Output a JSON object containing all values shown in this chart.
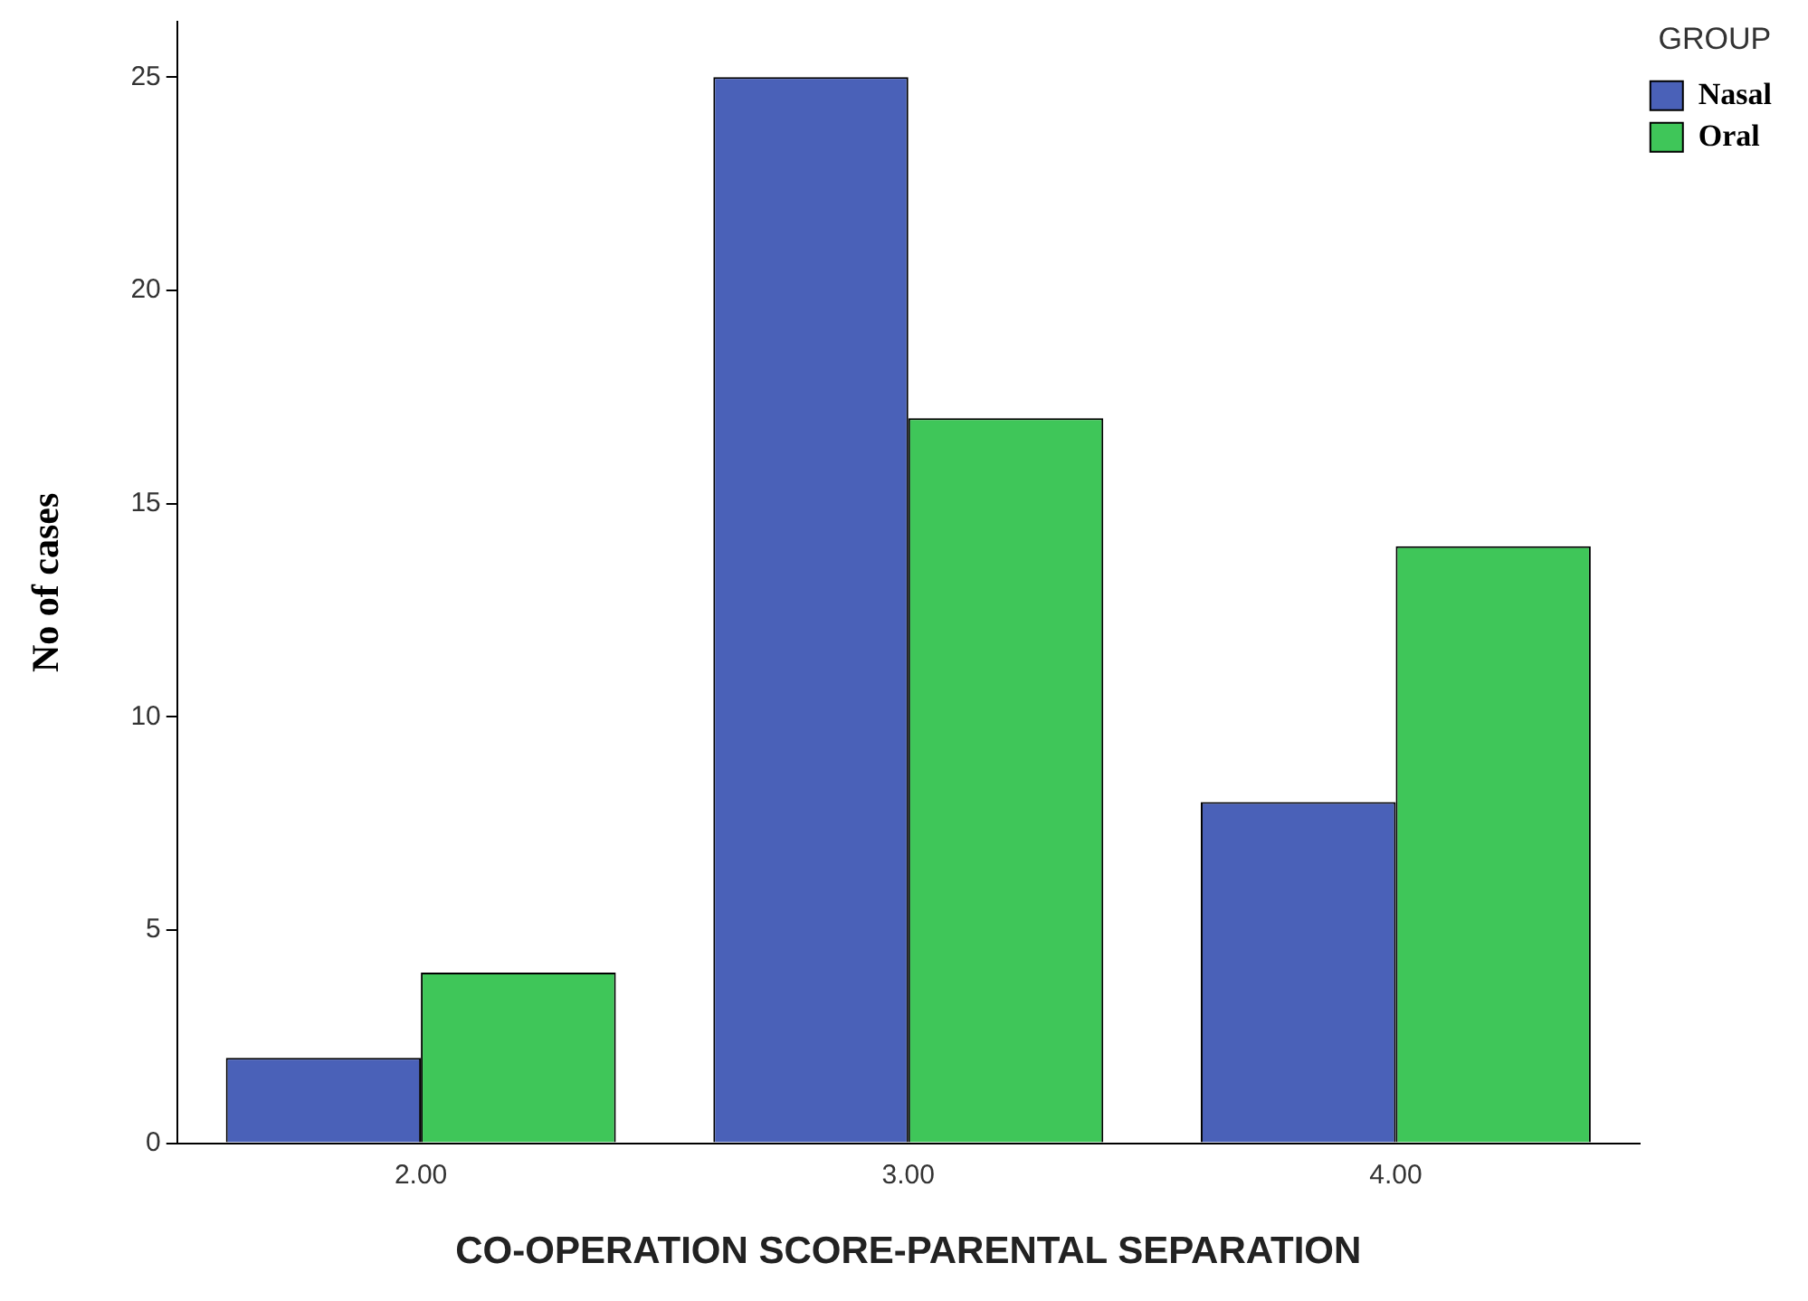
{
  "chart_data": {
    "type": "bar",
    "xlabel": "CO-OPERATION SCORE-PARENTAL SEPARATION",
    "ylabel": "No of cases",
    "legend_title": "GROUP",
    "legend": "top right",
    "categories": [
      "2.00",
      "3.00",
      "4.00"
    ],
    "series": [
      {
        "name": "Nasal",
        "color": "#4a61b8",
        "values": [
          2,
          25,
          8
        ]
      },
      {
        "name": "Oral",
        "color": "#3fc659",
        "values": [
          4,
          17,
          14
        ]
      }
    ],
    "ylim": [
      0,
      26.3
    ],
    "yticks": [
      0,
      5,
      10,
      15,
      20,
      25
    ],
    "grid": false
  }
}
